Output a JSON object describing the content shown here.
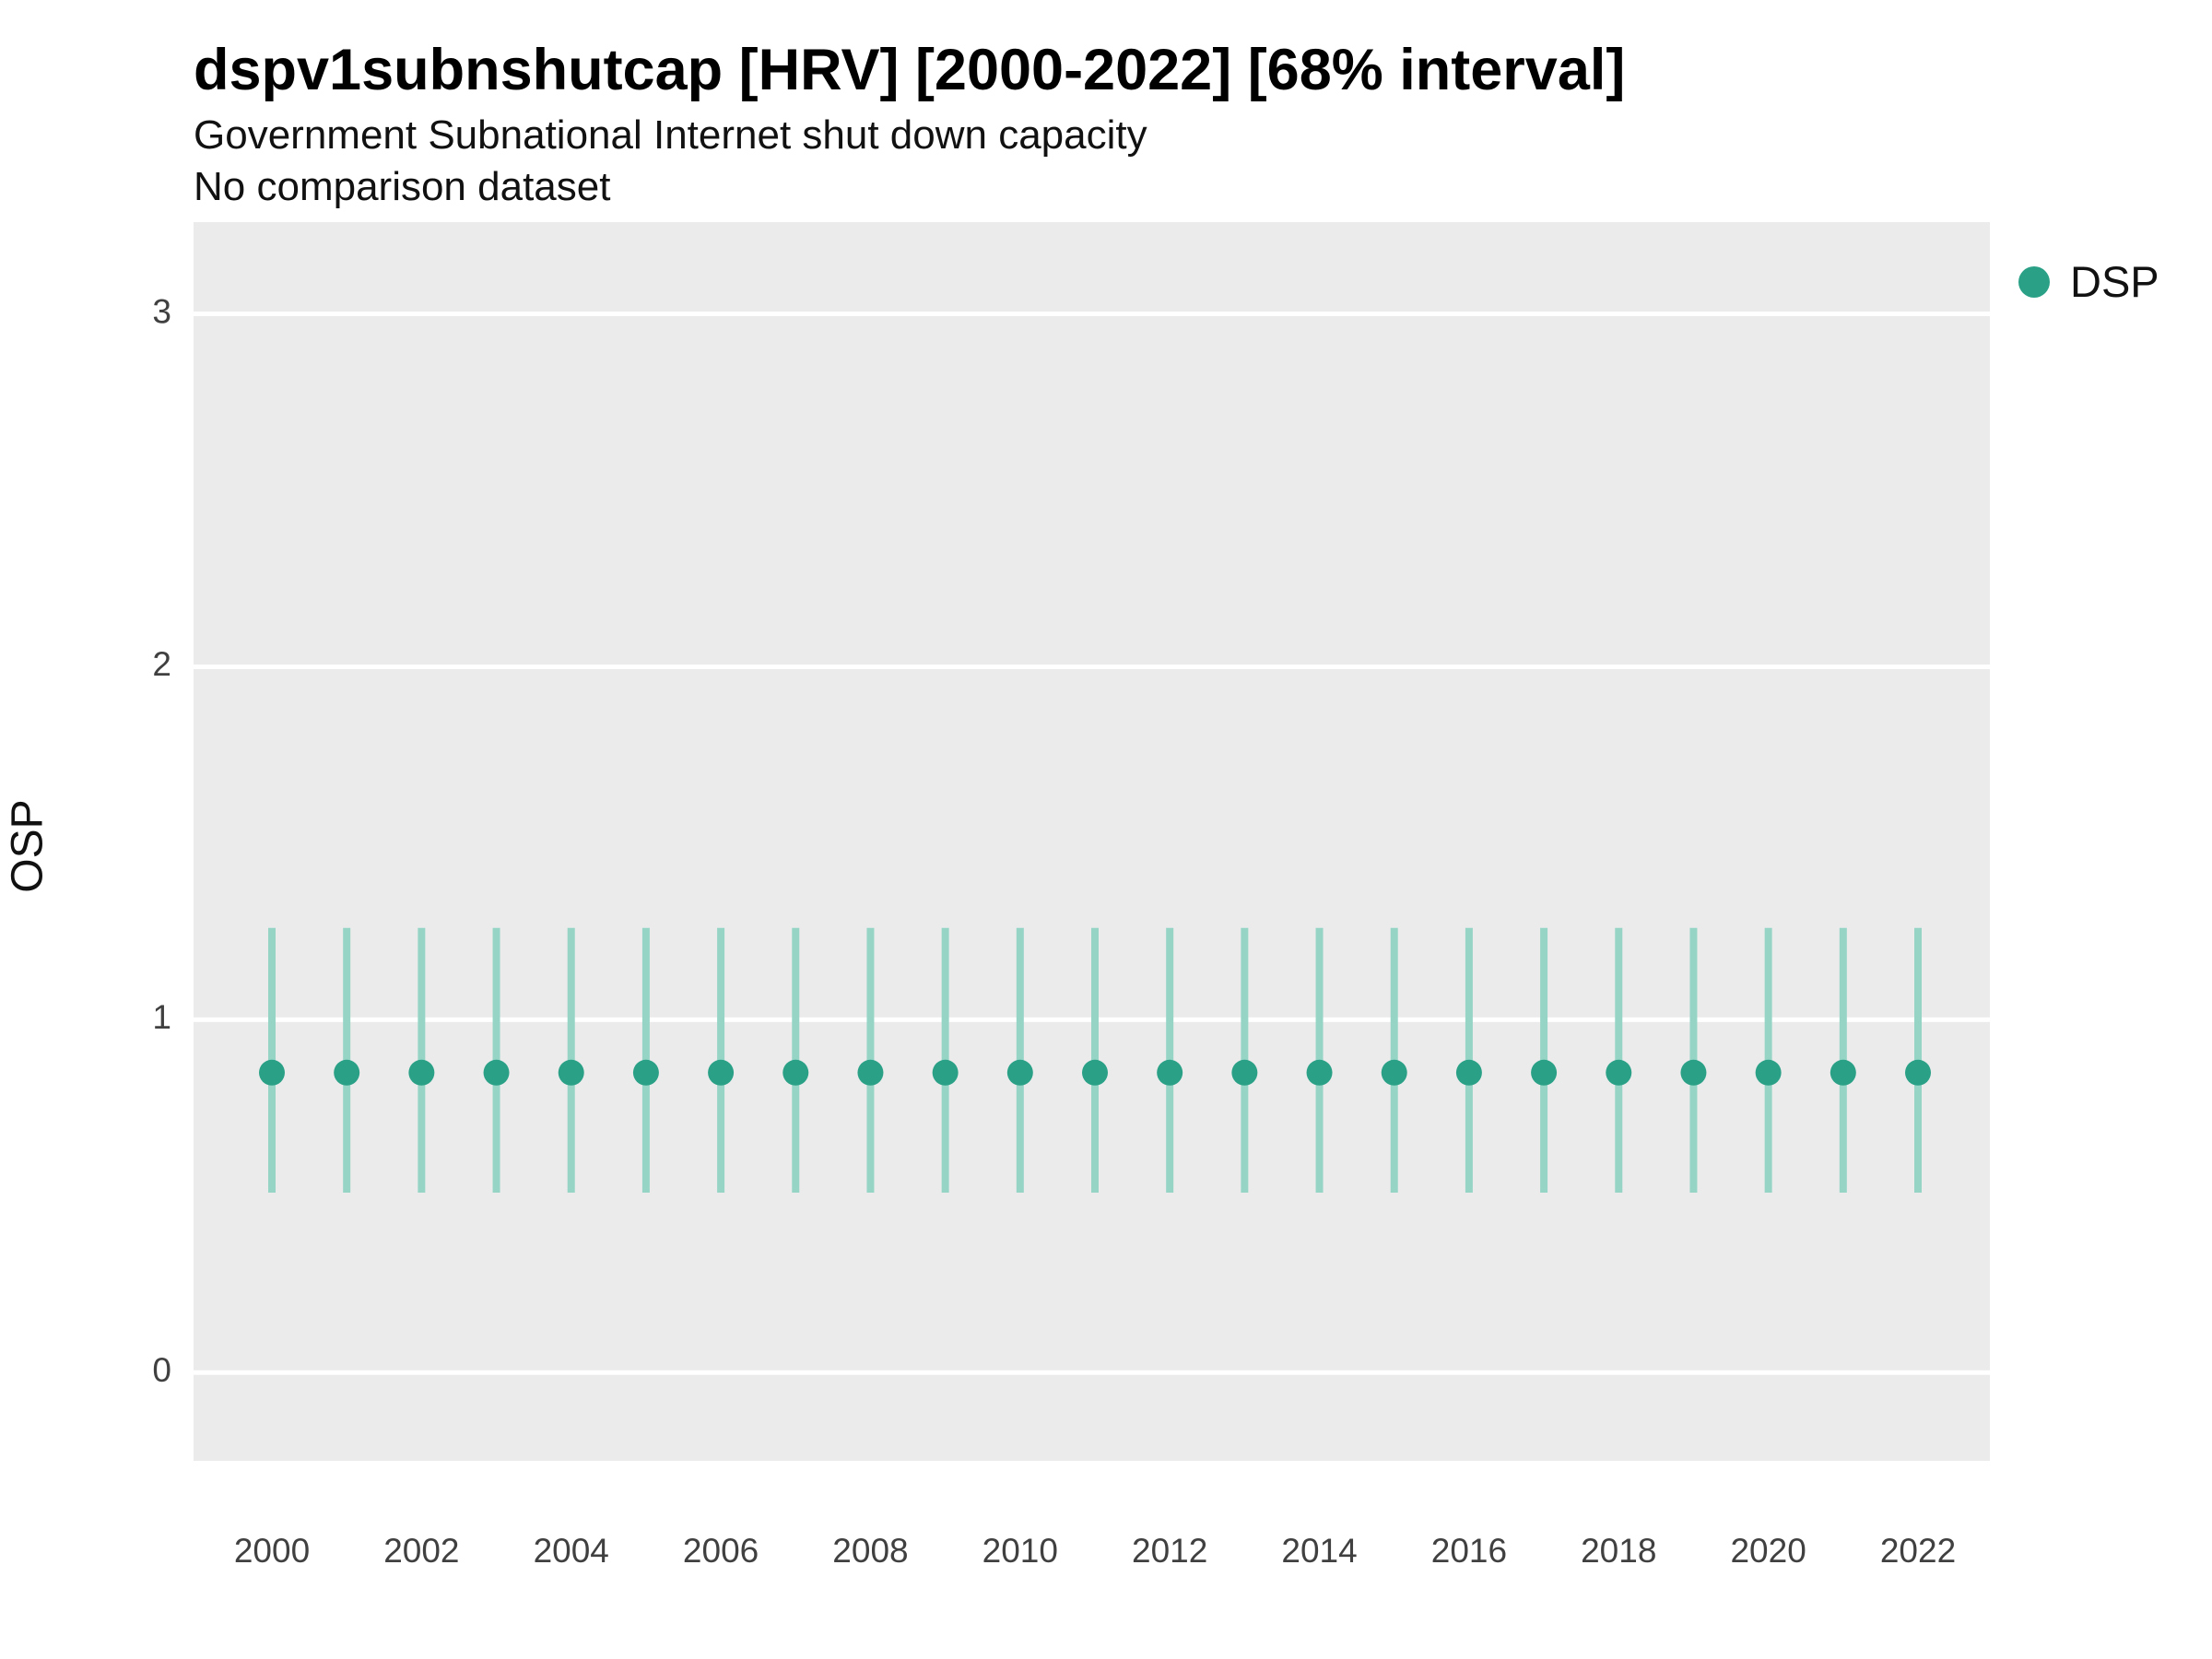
{
  "header": {
    "title": "dspv1subnshutcap [HRV] [2000-2022] [68% interval]",
    "subtitle": "Government Subnational Internet shut down capacity",
    "note": "No comparison dataset"
  },
  "legend": {
    "label": "DSP"
  },
  "chart_data": {
    "type": "scatter",
    "title": "dspv1subnshutcap [HRV] [2000-2022] [68% interval]",
    "subtitle": "Government Subnational Internet shut down capacity",
    "note": "No comparison dataset",
    "xlabel": "",
    "ylabel": "OSP",
    "interval": "68%",
    "x": [
      2000,
      2001,
      2002,
      2003,
      2004,
      2005,
      2006,
      2007,
      2008,
      2009,
      2010,
      2011,
      2012,
      2013,
      2014,
      2015,
      2016,
      2017,
      2018,
      2019,
      2020,
      2021,
      2022
    ],
    "series": [
      {
        "name": "DSP",
        "values": [
          0.85,
          0.85,
          0.85,
          0.85,
          0.85,
          0.85,
          0.85,
          0.85,
          0.85,
          0.85,
          0.85,
          0.85,
          0.85,
          0.85,
          0.85,
          0.85,
          0.85,
          0.85,
          0.85,
          0.85,
          0.85,
          0.85,
          0.85
        ],
        "lower": [
          0.51,
          0.51,
          0.51,
          0.51,
          0.51,
          0.51,
          0.51,
          0.51,
          0.51,
          0.51,
          0.51,
          0.51,
          0.51,
          0.51,
          0.51,
          0.51,
          0.51,
          0.51,
          0.51,
          0.51,
          0.51,
          0.51,
          0.51
        ],
        "upper": [
          1.26,
          1.26,
          1.26,
          1.26,
          1.26,
          1.26,
          1.26,
          1.26,
          1.26,
          1.26,
          1.26,
          1.26,
          1.26,
          1.26,
          1.26,
          1.26,
          1.26,
          1.26,
          1.26,
          1.26,
          1.26,
          1.26,
          1.26
        ]
      }
    ],
    "ylim": [
      -0.25,
      3.26
    ],
    "yticks": [
      0,
      1,
      2,
      3
    ],
    "xticks": [
      2000,
      2002,
      2004,
      2006,
      2008,
      2010,
      2012,
      2014,
      2016,
      2018,
      2020,
      2022
    ],
    "grid": "major-horizontal",
    "legend_position": "right-top",
    "colors": {
      "point": "#2aa187",
      "interval": "#96d5c6",
      "panel": "#ebebeb",
      "grid": "#ffffff",
      "tick_text": "#404040"
    }
  }
}
